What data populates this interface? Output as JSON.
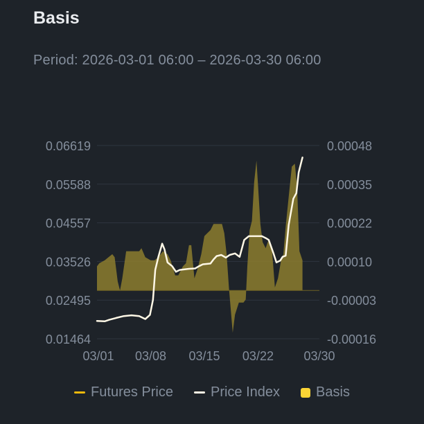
{
  "header": {
    "title": "Basis",
    "period": "Period: 2026-03-01 06:00 – 2026-03-30 06:00"
  },
  "legend": [
    {
      "label": "Futures Price",
      "color": "#f0b90b",
      "shape": "line"
    },
    {
      "label": "Price Index",
      "color": "#fff8e6",
      "shape": "line"
    },
    {
      "label": "Basis",
      "color": "#fcd535",
      "shape": "box"
    }
  ],
  "chart_data": {
    "type": "line",
    "x_label": "",
    "x_ticks": [
      "03/01",
      "03/08",
      "03/15",
      "03/22",
      "03/30"
    ],
    "x_tick_days": [
      1,
      8,
      15,
      22,
      30
    ],
    "x_range": [
      1,
      30
    ],
    "y_left": {
      "label": "",
      "ticks": [
        "0.06619",
        "0.05588",
        "0.04557",
        "0.03526",
        "0.02495",
        "0.01464"
      ],
      "range": [
        0.01464,
        0.06619
      ]
    },
    "y_right": {
      "label": "",
      "ticks": [
        "0.00048",
        "0.00035",
        "0.00022",
        "0.00010",
        "-0.00003",
        "-0.00016"
      ],
      "range": [
        -0.00016,
        0.00048
      ]
    },
    "grid": true,
    "series": [
      {
        "name": "Price Index",
        "axis": "left",
        "color": "#fff8e6",
        "points": [
          [
            1,
            0.0194
          ],
          [
            2,
            0.0193
          ],
          [
            2.6,
            0.0197
          ],
          [
            3.5,
            0.0202
          ],
          [
            4.5,
            0.0207
          ],
          [
            5.5,
            0.0209
          ],
          [
            6.5,
            0.0207
          ],
          [
            7.3,
            0.0199
          ],
          [
            7.9,
            0.021
          ],
          [
            8.3,
            0.025
          ],
          [
            8.6,
            0.033
          ],
          [
            9.0,
            0.0365
          ],
          [
            9.5,
            0.04
          ],
          [
            9.8,
            0.0385
          ],
          [
            10.2,
            0.035
          ],
          [
            10.8,
            0.034
          ],
          [
            11.3,
            0.0325
          ],
          [
            11.8,
            0.033
          ],
          [
            13.0,
            0.0333
          ],
          [
            13.8,
            0.0334
          ],
          [
            14.3,
            0.034
          ],
          [
            14.8,
            0.0345
          ],
          [
            15.8,
            0.0347
          ],
          [
            16.2,
            0.0358
          ],
          [
            16.6,
            0.0367
          ],
          [
            17.2,
            0.037
          ],
          [
            17.8,
            0.0363
          ],
          [
            18.3,
            0.037
          ],
          [
            19.0,
            0.0374
          ],
          [
            19.6,
            0.0365
          ],
          [
            20.2,
            0.041
          ],
          [
            20.8,
            0.042
          ],
          [
            22.5,
            0.042
          ],
          [
            23.0,
            0.0415
          ],
          [
            23.4,
            0.041
          ],
          [
            24.0,
            0.0375
          ],
          [
            24.4,
            0.035
          ],
          [
            24.9,
            0.0355
          ],
          [
            25.2,
            0.0365
          ],
          [
            25.6,
            0.0368
          ],
          [
            26.0,
            0.045
          ],
          [
            26.6,
            0.052
          ],
          [
            27.0,
            0.0535
          ],
          [
            27.3,
            0.059
          ],
          [
            27.8,
            0.063
          ]
        ]
      },
      {
        "name": "Basis",
        "axis": "right",
        "color": "#fcd535",
        "points": [
          [
            1,
            8e-05
          ],
          [
            1.3,
            9e-05
          ],
          [
            2.0,
            0.0001
          ],
          [
            2.5,
            0.00011
          ],
          [
            3.0,
            0.00012
          ],
          [
            3.3,
            0.00011
          ],
          [
            3.7,
            3e-05
          ],
          [
            4.0,
            0.0
          ],
          [
            4.3,
            4e-05
          ],
          [
            4.8,
            0.00013
          ],
          [
            5.2,
            0.00013
          ],
          [
            6.0,
            0.00013
          ],
          [
            6.5,
            0.00013
          ],
          [
            6.8,
            0.00014
          ],
          [
            7.3,
            0.00011
          ],
          [
            8.0,
            0.0001
          ],
          [
            8.5,
            0.0001
          ],
          [
            9.0,
            0.00011
          ],
          [
            9.6,
            0.00013
          ],
          [
            10.2,
            0.00012
          ],
          [
            10.6,
            0.0001
          ],
          [
            11.2,
            5e-05
          ],
          [
            11.6,
            5e-05
          ],
          [
            12.2,
            8e-05
          ],
          [
            12.6,
            9e-05
          ],
          [
            13.0,
            0.00015
          ],
          [
            13.3,
            0.00015
          ],
          [
            13.7,
            4e-05
          ],
          [
            14.1,
            7e-05
          ],
          [
            14.6,
            0.00012
          ],
          [
            15.0,
            0.00018
          ],
          [
            15.4,
            0.00019
          ],
          [
            15.8,
            0.0002
          ],
          [
            16.2,
            0.00022
          ],
          [
            16.7,
            0.00022
          ],
          [
            17.3,
            0.00022
          ],
          [
            17.6,
            0.00019
          ],
          [
            17.9,
            0.00012
          ],
          [
            18.2,
            1e-05
          ],
          [
            18.5,
            -8e-05
          ],
          [
            18.7,
            -0.00014
          ],
          [
            19.0,
            -8e-05
          ],
          [
            19.5,
            -4e-05
          ],
          [
            20.1,
            -4e-05
          ],
          [
            20.4,
            -3e-05
          ],
          [
            20.6,
            8e-05
          ],
          [
            20.9,
            0.0002
          ],
          [
            21.2,
            0.00023
          ],
          [
            21.5,
            0.00036
          ],
          [
            21.8,
            0.00043
          ],
          [
            22.0,
            0.00035
          ],
          [
            22.3,
            0.00022
          ],
          [
            22.6,
            0.00016
          ],
          [
            23.0,
            0.00014
          ],
          [
            23.4,
            0.00017
          ],
          [
            23.8,
            0.00014
          ],
          [
            24.2,
            1e-05
          ],
          [
            24.6,
            4e-05
          ],
          [
            25.0,
            0.0001
          ],
          [
            25.3,
            0.00012
          ],
          [
            25.6,
            0.00021
          ],
          [
            26.0,
            0.00031
          ],
          [
            26.4,
            0.00041
          ],
          [
            26.8,
            0.00042
          ],
          [
            27.1,
            0.00034
          ],
          [
            27.4,
            0.00013
          ],
          [
            27.8,
            0.0001
          ]
        ]
      }
    ],
    "futures_series_note": ""
  }
}
